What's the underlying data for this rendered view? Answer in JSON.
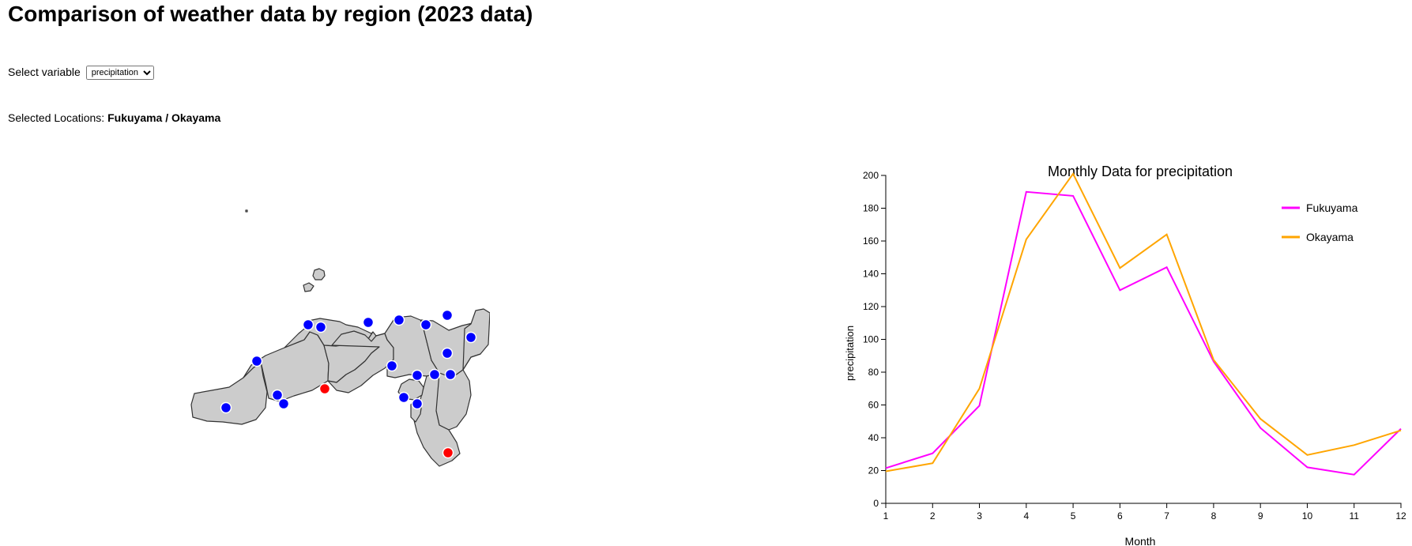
{
  "page": {
    "title": "Comparison of weather data by region (2023 data)",
    "select_label": "Select variable",
    "select_value": "precipitation",
    "select_options": [
      "precipitation"
    ],
    "selected_label": "Selected Locations:",
    "selected_value": "Fukuyama / Okayama"
  },
  "map": {
    "region_fill": "#cccccc",
    "border_color": "#333333",
    "station_color": "#0000ff",
    "selected_color": "#ff0000",
    "stations": [
      {
        "name": "station-1",
        "selected": false
      },
      {
        "name": "station-2",
        "selected": false
      },
      {
        "name": "station-3",
        "selected": false
      },
      {
        "name": "station-4",
        "selected": false
      },
      {
        "name": "station-5",
        "selected": false
      },
      {
        "name": "station-6",
        "selected": false
      },
      {
        "name": "station-7",
        "selected": false
      },
      {
        "name": "station-8",
        "selected": false
      },
      {
        "name": "station-9",
        "selected": false
      },
      {
        "name": "station-10",
        "selected": false
      },
      {
        "name": "station-11",
        "selected": false
      },
      {
        "name": "station-12",
        "selected": false
      },
      {
        "name": "station-13",
        "selected": false
      },
      {
        "name": "station-14",
        "selected": false
      },
      {
        "name": "station-15",
        "selected": false
      },
      {
        "name": "station-16",
        "selected": false
      },
      {
        "name": "station-17",
        "selected": false
      },
      {
        "name": "station-18",
        "selected": false
      },
      {
        "name": "Fukuyama",
        "selected": true
      },
      {
        "name": "Okayama",
        "selected": true
      }
    ]
  },
  "chart_data": {
    "type": "line",
    "title": "Monthly Data for precipitation",
    "xlabel": "Month",
    "ylabel": "precipitation",
    "x": [
      1,
      2,
      3,
      4,
      5,
      6,
      7,
      8,
      9,
      10,
      11,
      12
    ],
    "xlim": [
      1,
      12
    ],
    "ylim": [
      0,
      200
    ],
    "yticks": [
      0,
      20,
      40,
      60,
      80,
      100,
      120,
      140,
      160,
      180,
      200
    ],
    "grid": false,
    "legend_position": "top-right",
    "series": [
      {
        "name": "Fukuyama",
        "color": "#ff00ff",
        "values": [
          21.5,
          30.5,
          59.5,
          190,
          187.5,
          130,
          144,
          86.5,
          46,
          22,
          17.5,
          45.5
        ]
      },
      {
        "name": "Okayama",
        "color": "#ffa500",
        "values": [
          19.5,
          24.5,
          70,
          161,
          201,
          143.5,
          164,
          87.5,
          51.5,
          29.5,
          35.5,
          44.5
        ]
      }
    ]
  }
}
